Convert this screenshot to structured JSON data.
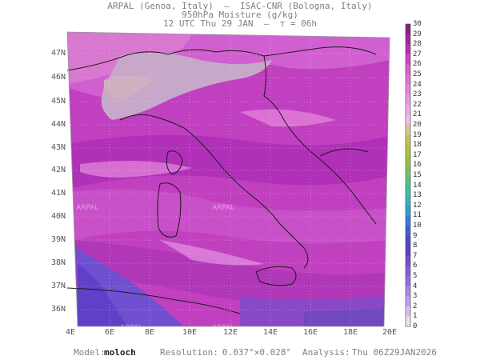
{
  "header": {
    "line1": "ARPAL (Genoa, Italy)  —  ISAC-CNR (Bologna, Italy)",
    "line2": "950hPa Moisture (g/kg)",
    "line3": "12 UTC Thu 29 JAN  —  τ = 06h"
  },
  "map": {
    "lat_labels": [
      "47N",
      "46N",
      "45N",
      "44N",
      "43N",
      "42N",
      "41N",
      "40N",
      "39N",
      "38N",
      "37N",
      "36N"
    ],
    "lon_labels": [
      "4E",
      "6E",
      "8E",
      "10E",
      "12E",
      "14E",
      "16E",
      "18E",
      "20E"
    ],
    "watermark": "ARPAL"
  },
  "colorbar": {
    "labels": [
      "30",
      "29",
      "28",
      "27",
      "26",
      "25",
      "24",
      "23",
      "22",
      "21",
      "20",
      "19",
      "18",
      "17",
      "16",
      "15",
      "14",
      "13",
      "12",
      "11",
      "10",
      "9",
      "8",
      "7",
      "6",
      "5",
      "4",
      "3",
      "2",
      "1",
      "0"
    ],
    "colors": [
      "#8a2080",
      "#a02898",
      "#b830b0",
      "#cc44c0",
      "#d860d0",
      "#e070d8",
      "#e880e0",
      "#ee96e4",
      "#f0a8ec",
      "#f4bcf0",
      "#d8c890",
      "#c8c060",
      "#b8c040",
      "#a0c040",
      "#80c060",
      "#60c080",
      "#40c0a0",
      "#30b8c0",
      "#30a0d0",
      "#3080d8",
      "#4060d8",
      "#5048c8",
      "#6040c0",
      "#7050d0",
      "#8060d8",
      "#9070e0",
      "#a888e8",
      "#c0a0ec",
      "#d8c0f0",
      "#ece0f8"
    ]
  },
  "footer": {
    "model_label": "Model:",
    "model_value": "moloch",
    "resolution_label": "Resolution:",
    "resolution_value": "0.037°×0.028°",
    "analysis_label": "Analysis:",
    "analysis_value": "Thu 06Z29JAN2026"
  }
}
